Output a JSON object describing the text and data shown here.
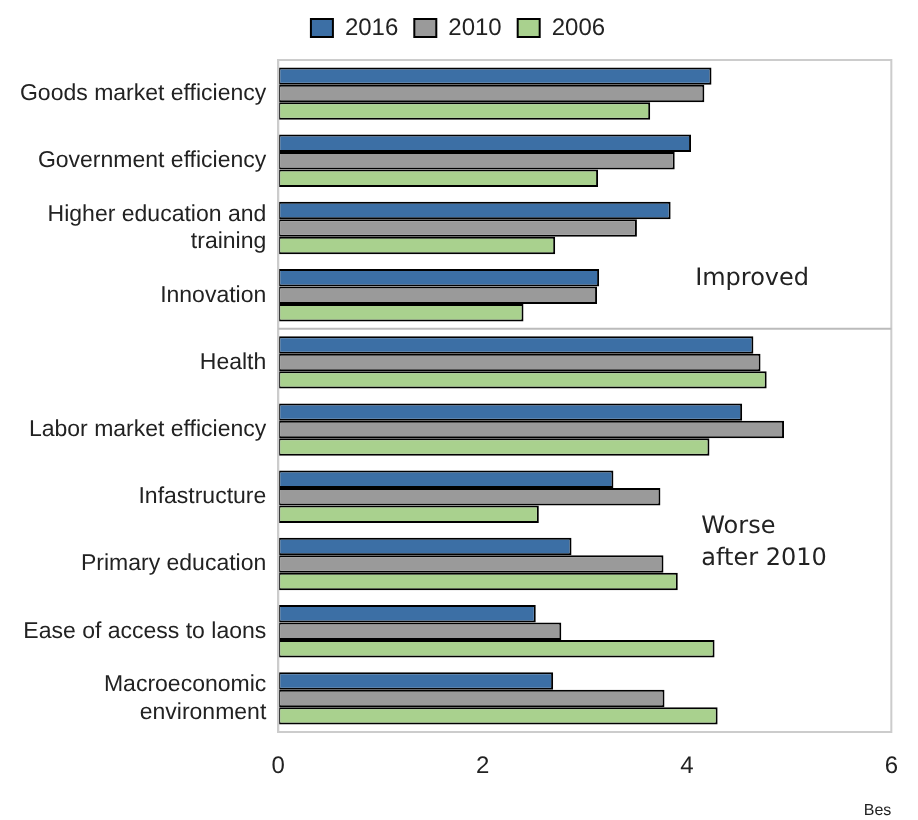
{
  "chart_data": {
    "type": "bar",
    "orientation": "horizontal",
    "xlabel": "Bes",
    "categories": [
      "Goods market efficiency",
      "Government efficiency",
      "Higher education and training",
      "Innovation",
      "Health",
      "Labor market efficiency",
      "Infastructure",
      "Primary education",
      "Ease of access to laons",
      "Macroeconomic environment"
    ],
    "series": [
      {
        "name": "2016",
        "color": "#3c6fa5",
        "values": [
          4.24,
          4.04,
          3.84,
          3.14,
          4.65,
          4.54,
          3.28,
          2.87,
          2.52,
          2.69
        ]
      },
      {
        "name": "2010",
        "color": "#9a9a9a",
        "values": [
          4.17,
          3.88,
          3.51,
          3.12,
          4.72,
          4.95,
          3.74,
          3.77,
          2.77,
          3.78
        ]
      },
      {
        "name": "2006",
        "color": "#a9d18e",
        "values": [
          3.64,
          3.13,
          2.71,
          2.4,
          4.78,
          4.22,
          2.55,
          3.91,
          4.27,
          4.3
        ]
      }
    ],
    "xlim": [
      0,
      6
    ],
    "xticks": [
      0,
      2,
      4,
      6
    ],
    "grid": false,
    "legend": "top",
    "annotations": [
      "Improved",
      "Worse after 2010"
    ]
  }
}
